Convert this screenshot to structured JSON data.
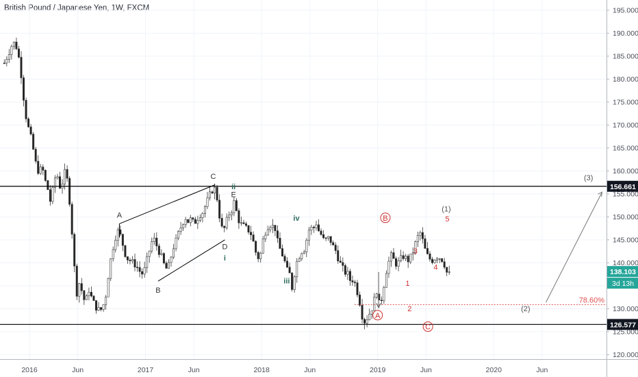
{
  "title": "British Pound / Japanese Yen, 1W, FXCM",
  "chart_data": {
    "type": "candlestick",
    "symbol": "British Pound / Japanese Yen, 1W, FXCM",
    "ylim": [
      117.5,
      196.5
    ],
    "y_ticks": [
      "195.000",
      "190.000",
      "185.000",
      "180.000",
      "175.000",
      "170.000",
      "165.000",
      "160.000",
      "155.000",
      "150.000",
      "145.000",
      "140.000",
      "135.000",
      "130.000",
      "125.000",
      "120.000"
    ],
    "x_ticks": [
      {
        "label": "2016",
        "t": 0.0
      },
      {
        "label": "Jun",
        "t": 5.0
      },
      {
        "label": "2017",
        "t": 12.0
      },
      {
        "label": "Jun",
        "t": 17.0
      },
      {
        "label": "2018",
        "t": 24.0
      },
      {
        "label": "Jun",
        "t": 29.0
      },
      {
        "label": "2019",
        "t": 36.0
      },
      {
        "label": "Jun",
        "t": 41.0
      },
      {
        "label": "2020",
        "t": 48.0
      },
      {
        "label": "Jun",
        "t": 53.0
      }
    ],
    "price_path": [
      [
        -2.6,
        183.5
      ],
      [
        -2.2,
        185.5
      ],
      [
        -1.8,
        187.5
      ],
      [
        -1.5,
        188.0
      ],
      [
        -1.2,
        186.0
      ],
      [
        -0.9,
        182.0
      ],
      [
        -0.6,
        176.0
      ],
      [
        -0.3,
        171.0
      ],
      [
        0.0,
        168.5
      ],
      [
        0.3,
        166.0
      ],
      [
        0.6,
        162.0
      ],
      [
        1.0,
        159.5
      ],
      [
        1.3,
        161.0
      ],
      [
        1.6,
        158.0
      ],
      [
        1.9,
        156.0
      ],
      [
        2.2,
        153.0
      ],
      [
        2.5,
        157.0
      ],
      [
        2.8,
        160.0
      ],
      [
        3.1,
        156.5
      ],
      [
        3.4,
        157.5
      ],
      [
        3.7,
        160.0
      ],
      [
        4.0,
        157.0
      ],
      [
        4.3,
        150.0
      ],
      [
        4.6,
        140.0
      ],
      [
        4.9,
        133.5
      ],
      [
        5.2,
        136.0
      ],
      [
        5.5,
        133.0
      ],
      [
        5.8,
        131.0
      ],
      [
        6.1,
        134.5
      ],
      [
        6.4,
        132.5
      ],
      [
        6.7,
        131.0
      ],
      [
        7.0,
        130.0
      ],
      [
        7.3,
        129.5
      ],
      [
        7.6,
        130.5
      ],
      [
        7.9,
        133.0
      ],
      [
        8.2,
        138.0
      ],
      [
        8.5,
        142.0
      ],
      [
        8.8,
        145.0
      ],
      [
        9.1,
        147.0
      ],
      [
        9.5,
        145.5
      ],
      [
        9.8,
        142.5
      ],
      [
        10.1,
        141.0
      ],
      [
        10.4,
        140.5
      ],
      [
        10.7,
        140.0
      ],
      [
        11.0,
        139.5
      ],
      [
        11.3,
        138.5
      ],
      [
        11.6,
        137.5
      ],
      [
        11.9,
        138.5
      ],
      [
        12.2,
        141.0
      ],
      [
        12.5,
        143.5
      ],
      [
        12.8,
        145.5
      ],
      [
        13.1,
        144.0
      ],
      [
        13.4,
        142.5
      ],
      [
        13.7,
        141.0
      ],
      [
        14.0,
        139.0
      ],
      [
        14.3,
        138.5
      ],
      [
        14.6,
        141.0
      ],
      [
        14.9,
        143.5
      ],
      [
        15.2,
        145.0
      ],
      [
        15.5,
        147.0
      ],
      [
        15.8,
        148.5
      ],
      [
        16.1,
        150.0
      ],
      [
        16.4,
        149.0
      ],
      [
        16.7,
        149.5
      ],
      [
        17.0,
        148.5
      ],
      [
        17.3,
        149.5
      ],
      [
        17.6,
        150.5
      ],
      [
        17.9,
        151.0
      ],
      [
        18.2,
        152.5
      ],
      [
        18.5,
        154.0
      ],
      [
        18.8,
        155.5
      ],
      [
        19.1,
        156.5
      ],
      [
        19.4,
        154.0
      ],
      [
        19.7,
        149.5
      ],
      [
        20.0,
        146.5
      ],
      [
        20.3,
        148.5
      ],
      [
        20.6,
        150.5
      ],
      [
        20.9,
        151.5
      ],
      [
        21.2,
        153.5
      ],
      [
        21.5,
        150.0
      ],
      [
        21.8,
        148.5
      ],
      [
        22.1,
        148.0
      ],
      [
        22.4,
        147.5
      ],
      [
        22.7,
        147.0
      ],
      [
        23.0,
        146.0
      ],
      [
        23.3,
        143.0
      ],
      [
        23.6,
        141.0
      ],
      [
        23.9,
        142.0
      ],
      [
        24.2,
        145.5
      ],
      [
        24.5,
        147.5
      ],
      [
        24.8,
        148.5
      ],
      [
        25.1,
        148.0
      ],
      [
        25.4,
        147.5
      ],
      [
        25.7,
        144.0
      ],
      [
        26.0,
        142.5
      ],
      [
        26.3,
        141.0
      ],
      [
        26.6,
        138.5
      ],
      [
        26.9,
        137.5
      ],
      [
        27.2,
        134.0
      ],
      [
        27.5,
        139.5
      ],
      [
        27.8,
        141.0
      ],
      [
        28.1,
        142.5
      ],
      [
        28.4,
        143.0
      ],
      [
        28.7,
        145.5
      ],
      [
        29.0,
        148.0
      ],
      [
        29.3,
        147.0
      ],
      [
        29.6,
        149.0
      ],
      [
        29.9,
        147.0
      ],
      [
        30.2,
        146.0
      ],
      [
        30.5,
        144.5
      ],
      [
        30.8,
        145.5
      ],
      [
        31.1,
        145.0
      ],
      [
        31.4,
        143.5
      ],
      [
        31.7,
        142.5
      ],
      [
        32.0,
        140.5
      ],
      [
        32.3,
        139.0
      ],
      [
        32.6,
        138.0
      ],
      [
        32.9,
        137.5
      ],
      [
        33.2,
        136.0
      ],
      [
        33.5,
        136.5
      ],
      [
        33.8,
        134.5
      ],
      [
        34.1,
        132.0
      ],
      [
        34.4,
        128.5
      ],
      [
        34.7,
        127.0
      ],
      [
        35.0,
        128.5
      ],
      [
        35.3,
        129.5
      ],
      [
        35.6,
        131.5
      ],
      [
        35.9,
        134.0
      ],
      [
        36.2,
        130.5
      ],
      [
        36.5,
        133.0
      ],
      [
        36.8,
        137.5
      ],
      [
        37.1,
        140.0
      ],
      [
        37.4,
        141.5
      ],
      [
        37.7,
        140.5
      ],
      [
        38.0,
        139.5
      ],
      [
        38.3,
        140.5
      ],
      [
        38.6,
        141.5
      ],
      [
        38.9,
        141.0
      ],
      [
        39.2,
        140.5
      ],
      [
        39.5,
        141.5
      ],
      [
        39.8,
        143.5
      ],
      [
        40.1,
        145.5
      ],
      [
        40.4,
        146.5
      ],
      [
        40.7,
        144.5
      ],
      [
        41.0,
        142.0
      ],
      [
        41.3,
        141.0
      ],
      [
        41.6,
        140.5
      ],
      [
        41.9,
        141.0
      ],
      [
        42.2,
        141.5
      ],
      [
        42.5,
        141.0
      ],
      [
        42.8,
        140.5
      ],
      [
        43.1,
        138.0
      ],
      [
        43.4,
        137.5
      ]
    ],
    "horizontal_levels": [
      {
        "value": 156.661,
        "label": "156.661",
        "style": "solid"
      },
      {
        "value": 126.577,
        "label": "126.577",
        "style": "solid"
      },
      {
        "value": 130.9,
        "label": "78.60%",
        "style": "dotted",
        "color": "#e05050"
      }
    ],
    "last_price": {
      "value": 138.103,
      "label": "138.103",
      "countdown": "3d 13h",
      "color": "#26a69a"
    },
    "annotations": [
      {
        "text": "A",
        "color": "#333333"
      },
      {
        "text": "B",
        "color": "#333333"
      },
      {
        "text": "C",
        "color": "#333333"
      },
      {
        "text": "D",
        "color": "#333333"
      },
      {
        "text": "E",
        "color": "#333333"
      },
      {
        "text": "i",
        "color": "#2e6b5e",
        "bold": true
      },
      {
        "text": "ii",
        "color": "#2e6b5e",
        "bold": true
      },
      {
        "text": "iii",
        "color": "#2e6b5e",
        "bold": true
      },
      {
        "text": "iv",
        "color": "#2e6b5e",
        "bold": true
      },
      {
        "text": "A",
        "color": "#d03030",
        "circle": true
      },
      {
        "text": "B",
        "color": "#d03030",
        "circle": true
      },
      {
        "text": "C",
        "color": "#d03030",
        "circle": true
      },
      {
        "text": "1",
        "color": "#d03030"
      },
      {
        "text": "2",
        "color": "#d03030"
      },
      {
        "text": "3",
        "color": "#d03030"
      },
      {
        "text": "4",
        "color": "#d03030"
      },
      {
        "text": "5",
        "color": "#d03030"
      },
      {
        "text": "(1)",
        "color": "#555555"
      },
      {
        "text": "(2)",
        "color": "#555555"
      },
      {
        "text": "(3)",
        "color": "#555555"
      }
    ],
    "colors": {
      "up": "#444444",
      "down": "#222222",
      "line": "#000000",
      "grid": "#f0f3fa",
      "axis": "#b2b5be"
    }
  }
}
